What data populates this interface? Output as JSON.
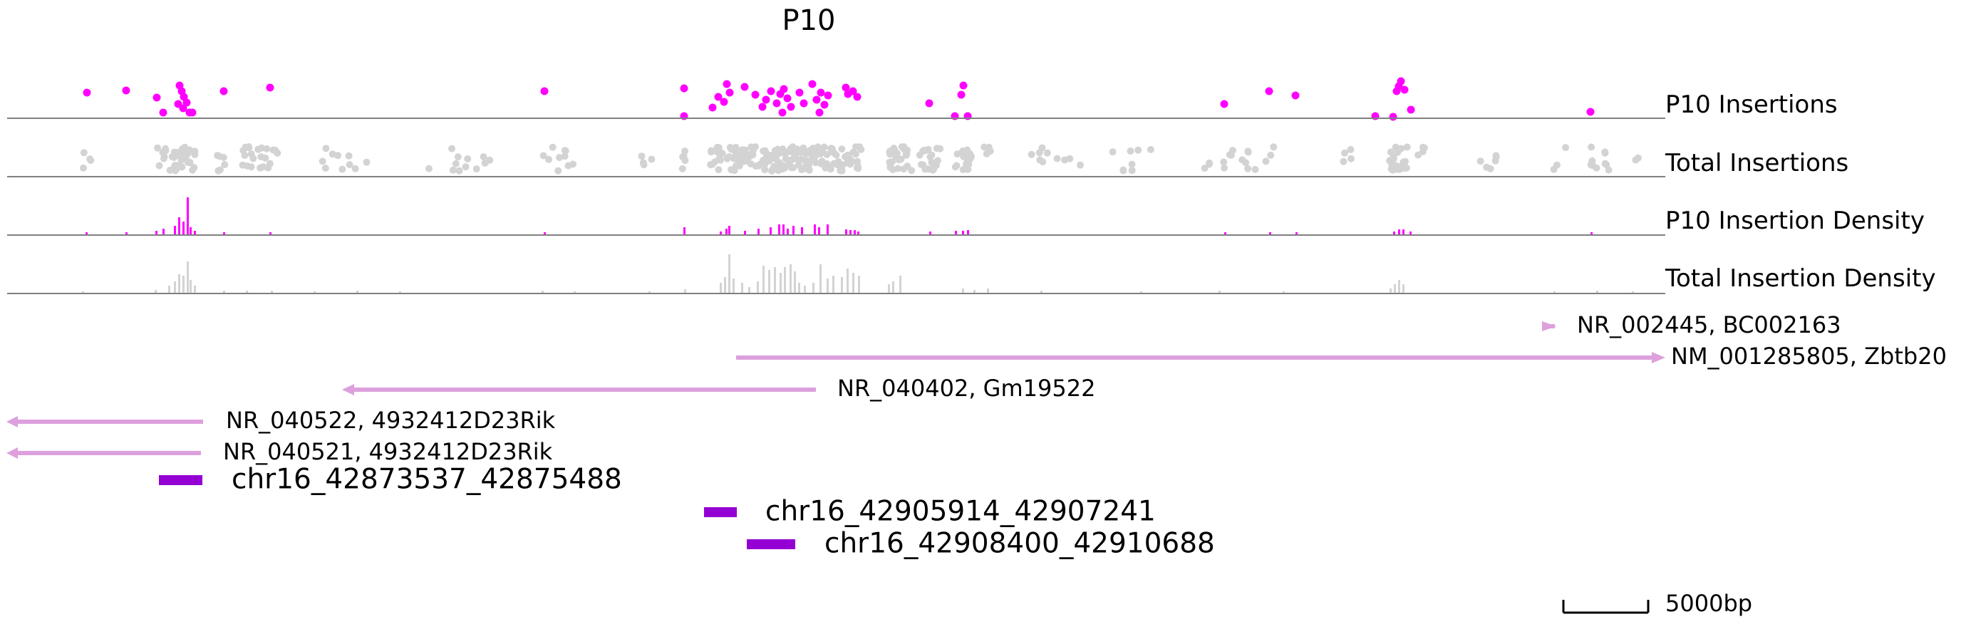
{
  "title": "P10",
  "colors": {
    "p10": "#ff00ff",
    "total": "#d3d3d3",
    "gene": "#dda0dd",
    "peak": "#9400d3",
    "axis": "#808080"
  },
  "tracks": {
    "p10_insertions": "P10 Insertions",
    "total_insertions": "Total Insertions",
    "p10_density": "P10 Insertion Density",
    "total_density": "Total Insertion Density"
  },
  "genes": [
    {
      "label": "NR_002445, BC002163",
      "strand": "+"
    },
    {
      "label": "NM_001285805, Zbtb20",
      "strand": "+"
    },
    {
      "label": "NR_040402, Gm19522",
      "strand": "-"
    },
    {
      "label": "NR_040522, 4932412D23Rik",
      "strand": "-"
    },
    {
      "label": "NR_040521, 4932412D23Rik",
      "strand": "-"
    }
  ],
  "peaks": [
    {
      "label": "chr16_42873537_42875488"
    },
    {
      "label": "chr16_42905914_42907241"
    },
    {
      "label": "chr16_42908400_42910688"
    }
  ],
  "scale_bar": {
    "label": "5000bp"
  }
}
